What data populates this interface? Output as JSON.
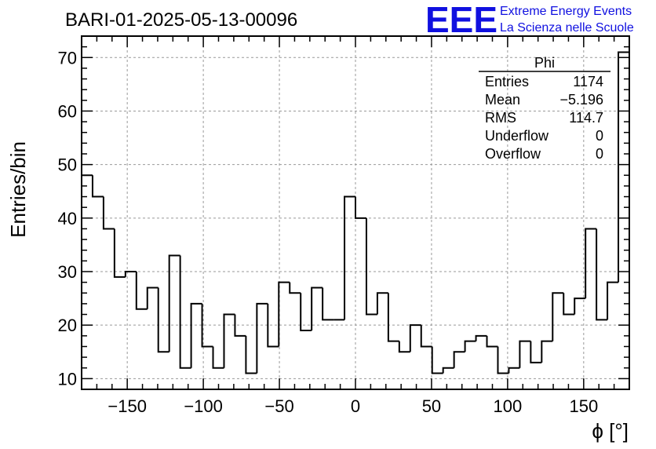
{
  "logo": {
    "mark": "EEE",
    "line1": "Extreme Energy Events",
    "line2": "La Scienza nelle Scuole",
    "color": "#1010e0"
  },
  "stats": {
    "name": "Phi",
    "rows": [
      {
        "label": "Entries",
        "value": "1174"
      },
      {
        "label": "Mean",
        "value": "−5.196"
      },
      {
        "label": "RMS",
        "value": "114.7"
      },
      {
        "label": "Underflow",
        "value": "0"
      },
      {
        "label": "Overflow",
        "value": "0"
      }
    ]
  },
  "chart_data": {
    "type": "histogram",
    "title": "BARI-01-2025-05-13-00096",
    "xlabel": "ϕ [°]",
    "ylabel": "Entries/bin",
    "xlim": [
      -180,
      180
    ],
    "ylim": [
      8,
      74
    ],
    "bin_width": 7.2,
    "x_ticks": [
      -150,
      -100,
      -50,
      0,
      50,
      100,
      150
    ],
    "x_tick_labels": [
      "−150",
      "−100",
      "−50",
      "0",
      "50",
      "100",
      "150"
    ],
    "y_ticks": [
      10,
      20,
      30,
      40,
      50,
      60,
      70
    ],
    "y_tick_labels": [
      "10",
      "20",
      "30",
      "40",
      "50",
      "60",
      "70"
    ],
    "grid": true,
    "values": [
      48,
      44,
      38,
      29,
      30,
      23,
      27,
      15,
      33,
      12,
      24,
      16,
      12,
      22,
      18,
      11,
      24,
      16,
      28,
      26,
      19,
      27,
      21,
      21,
      44,
      40,
      22,
      26,
      17,
      15,
      20,
      16,
      11,
      12,
      15,
      17,
      18,
      16,
      11,
      12,
      17,
      13,
      17,
      26,
      22,
      25,
      38,
      21,
      28,
      71
    ],
    "line_color": "#000000"
  }
}
